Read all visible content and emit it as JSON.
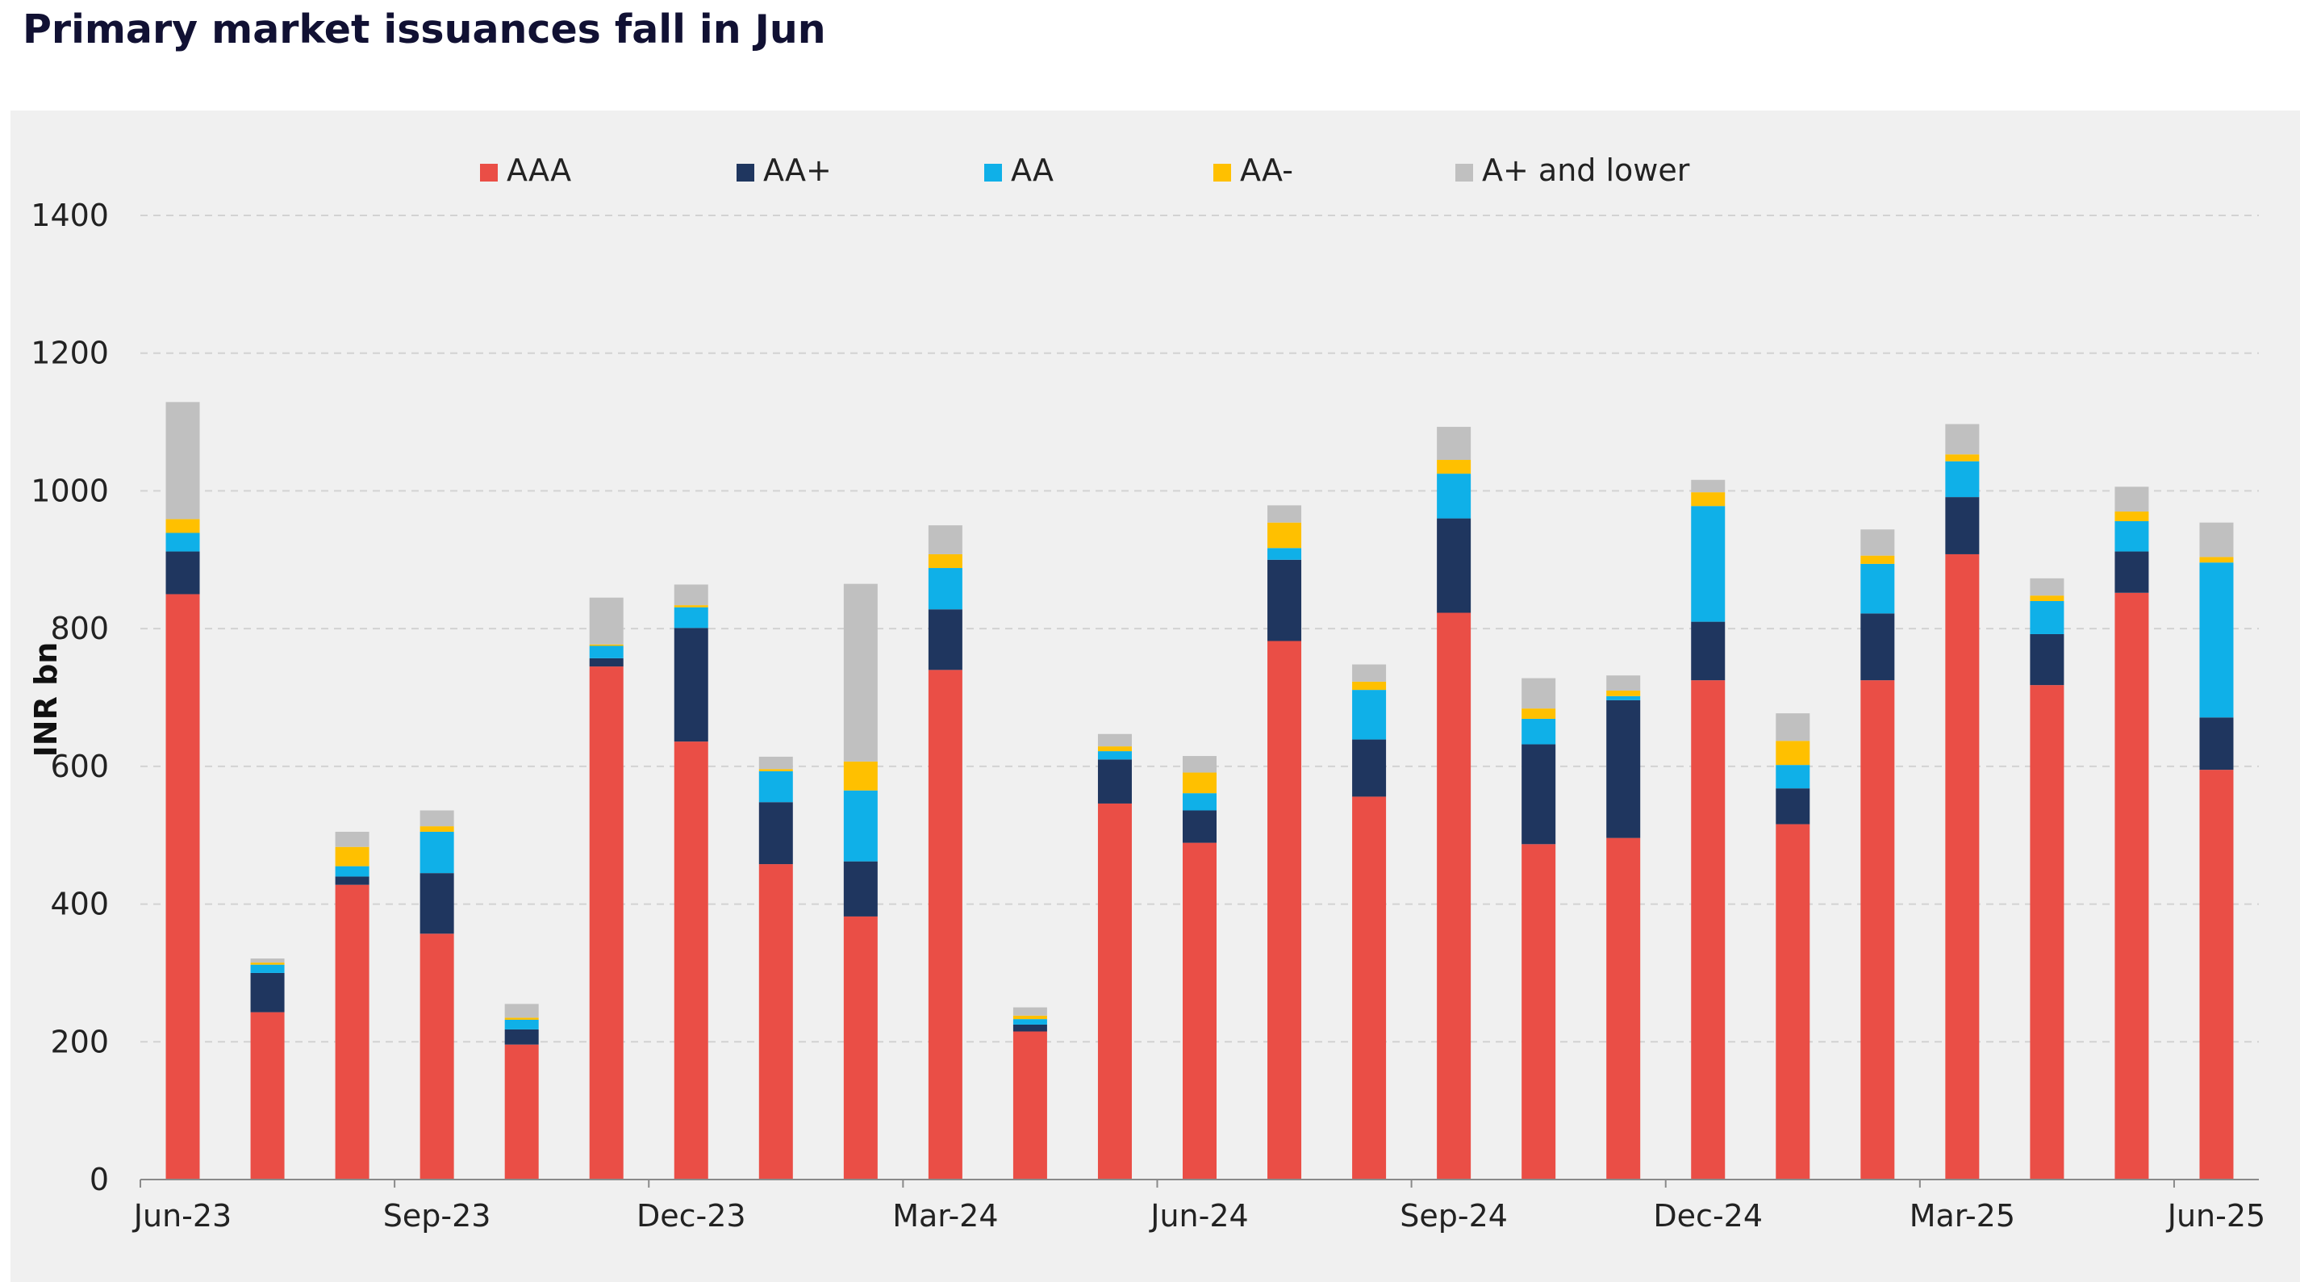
{
  "title": "Primary market issuances fall in Jun",
  "chart_data": {
    "type": "bar",
    "stacked": true,
    "title": "Primary market issuances fall in Jun",
    "xlabel": "",
    "ylabel": "INR bn",
    "ylim": [
      0,
      1400
    ],
    "yticks": [
      0,
      200,
      400,
      600,
      800,
      1000,
      1200,
      1400
    ],
    "grid": true,
    "legend_position": "top",
    "categories": [
      "Jun-23",
      "Jul-23",
      "Aug-23",
      "Sep-23",
      "Oct-23",
      "Nov-23",
      "Dec-23",
      "Jan-24",
      "Feb-24",
      "Mar-24",
      "Apr-24",
      "May-24",
      "Jun-24",
      "Jul-24",
      "Aug-24",
      "Sep-24",
      "Oct-24",
      "Nov-24",
      "Dec-24",
      "Jan-25",
      "Feb-25",
      "Mar-25",
      "Apr-25",
      "May-25",
      "Jun-25"
    ],
    "tick_labels": [
      "Jun-23",
      "Sep-23",
      "Dec-23",
      "Mar-24",
      "Jun-24",
      "Sep-24",
      "Dec-24",
      "Mar-25",
      "Jun-25"
    ],
    "series": [
      {
        "name": "AAA",
        "color": "#ea4e46",
        "values": [
          850,
          243,
          428,
          357,
          196,
          745,
          636,
          458,
          382,
          740,
          215,
          546,
          489,
          782,
          556,
          823,
          487,
          496,
          725,
          516,
          725,
          908,
          718,
          852,
          595
        ]
      },
      {
        "name": "AA+",
        "color": "#1f365f",
        "values": [
          62,
          57,
          12,
          88,
          22,
          12,
          165,
          90,
          80,
          88,
          10,
          64,
          47,
          118,
          83,
          137,
          145,
          200,
          85,
          52,
          97,
          83,
          74,
          60,
          76
        ]
      },
      {
        "name": "AA",
        "color": "#0fb0e8",
        "values": [
          27,
          12,
          15,
          60,
          14,
          18,
          30,
          45,
          103,
          60,
          8,
          12,
          25,
          17,
          72,
          65,
          37,
          6,
          168,
          34,
          72,
          52,
          48,
          44,
          225
        ]
      },
      {
        "name": "AA-",
        "color": "#ffc000",
        "values": [
          20,
          3,
          28,
          8,
          3,
          2,
          3,
          3,
          42,
          20,
          5,
          7,
          30,
          37,
          12,
          20,
          15,
          8,
          20,
          35,
          12,
          10,
          8,
          14,
          8
        ]
      },
      {
        "name": "A+ and lower",
        "color": "#c0c0c0",
        "values": [
          170,
          6,
          22,
          23,
          20,
          68,
          30,
          18,
          258,
          42,
          12,
          18,
          24,
          25,
          25,
          48,
          44,
          22,
          18,
          40,
          38,
          44,
          25,
          36,
          50
        ]
      }
    ]
  }
}
